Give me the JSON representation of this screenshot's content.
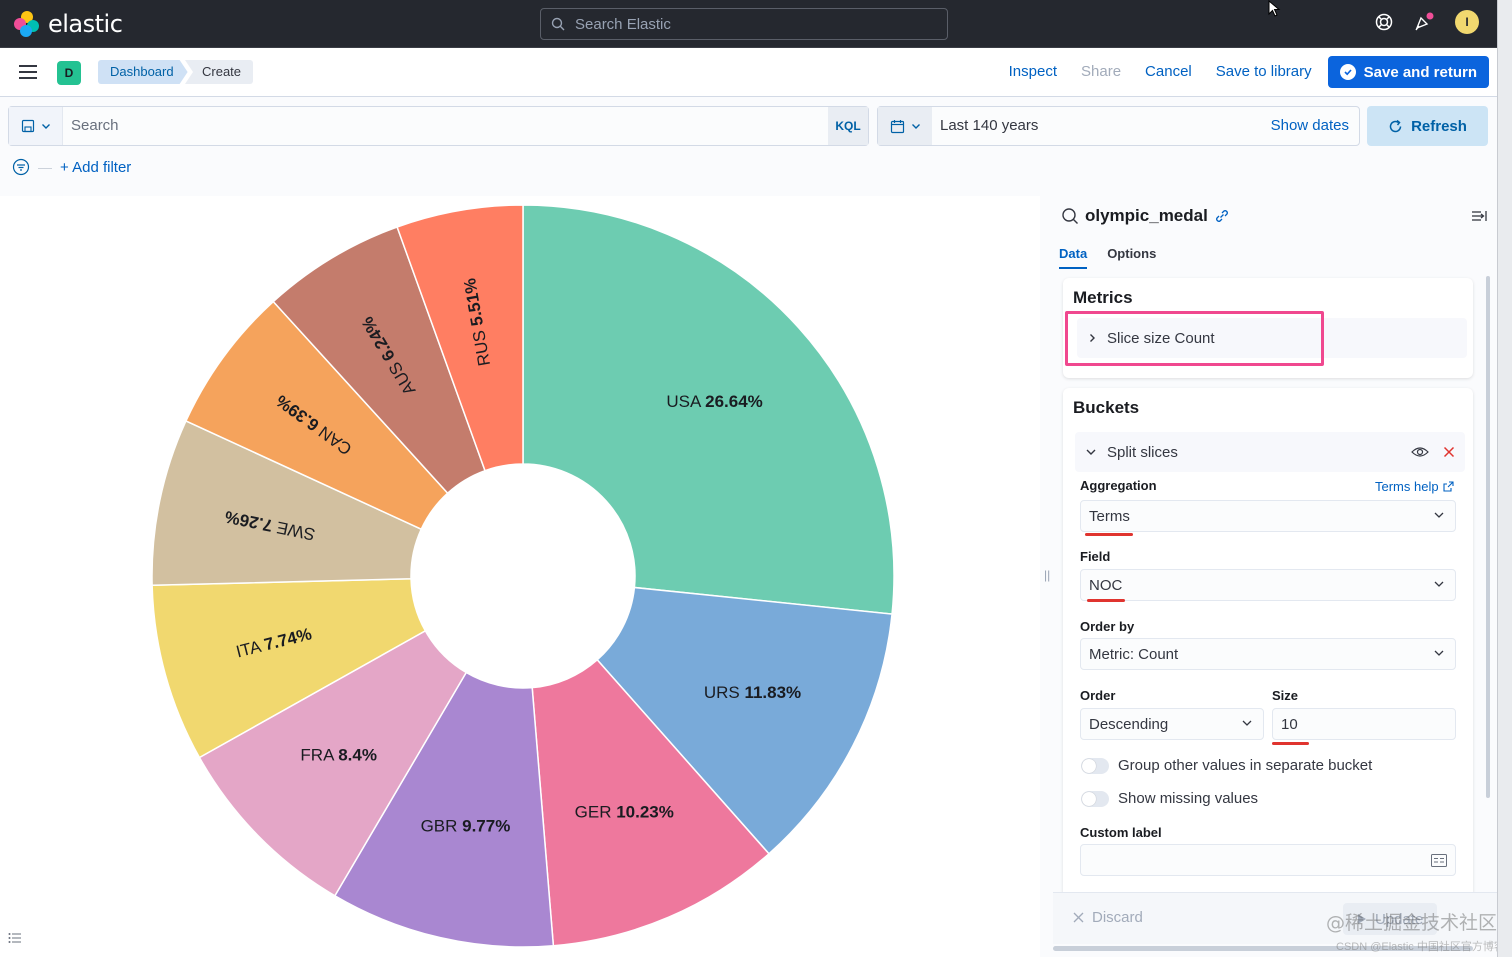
{
  "header": {
    "app_name": "elastic",
    "search_placeholder": "Search Elastic",
    "avatar_initial": "I"
  },
  "breadcrumbs": {
    "space_initial": "D",
    "items": [
      "Dashboard",
      "Create"
    ]
  },
  "top_actions": {
    "inspect": "Inspect",
    "share": "Share",
    "cancel": "Cancel",
    "save_to_library": "Save to library",
    "save_and_return": "Save and return"
  },
  "query_bar": {
    "placeholder": "Search",
    "language": "KQL",
    "time_range": "Last 140 years",
    "show_dates": "Show dates",
    "refresh": "Refresh",
    "add_filter": "+ Add filter"
  },
  "chart_data": {
    "type": "pie",
    "donut": true,
    "slices": [
      {
        "label": "USA",
        "value": 26.64,
        "display": "26.64%",
        "color": "#6dccb1"
      },
      {
        "label": "URS",
        "value": 11.83,
        "display": "11.83%",
        "color": "#79aad9"
      },
      {
        "label": "GER",
        "value": 10.23,
        "display": "10.23%",
        "color": "#ee789d"
      },
      {
        "label": "GBR",
        "value": 9.77,
        "display": "9.77%",
        "color": "#a987d1"
      },
      {
        "label": "FRA",
        "value": 8.4,
        "display": "8.4%",
        "color": "#e4a6c7"
      },
      {
        "label": "ITA",
        "value": 7.74,
        "display": "7.74%",
        "color": "#f1d86f"
      },
      {
        "label": "SWE",
        "value": 7.26,
        "display": "7.26%",
        "color": "#d2c0a0"
      },
      {
        "label": "CAN",
        "value": 6.39,
        "display": "6.39%",
        "color": "#f5a35c"
      },
      {
        "label": "AUS",
        "value": 6.24,
        "display": "6.24%",
        "color": "#c47c6c"
      },
      {
        "label": "RUS",
        "value": 5.51,
        "display": "5.51%",
        "color": "#ff7e62"
      }
    ]
  },
  "panel": {
    "index_name": "olympic_medal",
    "tabs": [
      "Data",
      "Options"
    ],
    "metrics_title": "Metrics",
    "metric_row": "Slice size Count",
    "buckets_title": "Buckets",
    "split_label": "Split slices",
    "aggregation_label": "Aggregation",
    "terms_help": "Terms help",
    "aggregation_value": "Terms",
    "field_label": "Field",
    "field_value": "NOC",
    "order_by_label": "Order by",
    "order_by_value": "Metric: Count",
    "order_label": "Order",
    "order_value": "Descending",
    "size_label": "Size",
    "size_value": "10",
    "group_other": "Group other values in separate bucket",
    "show_missing": "Show missing values",
    "custom_label": "Custom label",
    "discard": "Discard",
    "update": "Update"
  },
  "watermark": {
    "line1": "@稀土掘金技术社区",
    "line2": "CSDN @Elastic 中国社区官方博客"
  }
}
